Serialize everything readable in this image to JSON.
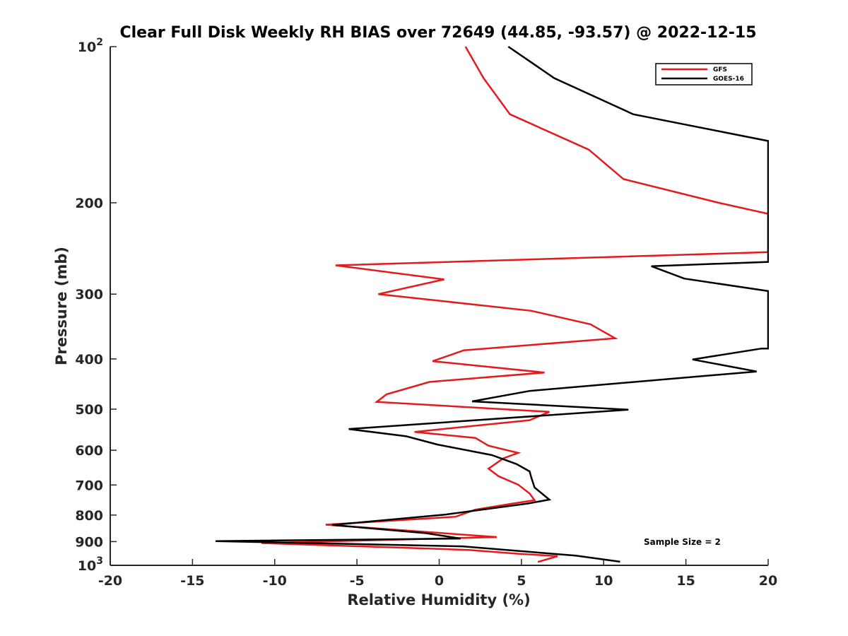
{
  "chart_data": {
    "type": "line",
    "title": "Clear Full Disk Weekly RH BIAS over 72649 (44.85, -93.57) @ 2022-12-15",
    "xlabel": "Relative Humidity (%)",
    "ylabel": "Pressure (mb)",
    "xlim": [
      -20,
      20
    ],
    "ylim": [
      100,
      1000
    ],
    "y_scale": "log",
    "y_reversed": true,
    "x_ticks": [
      "-20",
      "-15",
      "-10",
      "-5",
      "0",
      "5",
      "10",
      "15",
      "20"
    ],
    "y_ticks": [
      {
        "value": 100,
        "label": "10",
        "sup": "2"
      },
      {
        "value": 200,
        "label": "200"
      },
      {
        "value": 300,
        "label": "300"
      },
      {
        "value": 400,
        "label": "400"
      },
      {
        "value": 500,
        "label": "500"
      },
      {
        "value": 600,
        "label": "600"
      },
      {
        "value": 700,
        "label": "700"
      },
      {
        "value": 800,
        "label": "800"
      },
      {
        "value": 900,
        "label": "900"
      },
      {
        "value": 1000,
        "label": "10",
        "sup": "3"
      }
    ],
    "legend_position": "top-right",
    "annotation": "Sample Size = 2",
    "series": [
      {
        "name": "GFS",
        "color": "#e41a1c",
        "points": [
          [
            1.6,
            100
          ],
          [
            2.7,
            115
          ],
          [
            4.3,
            135
          ],
          [
            9.1,
            158
          ],
          [
            11.2,
            180
          ],
          [
            17.0,
            200
          ],
          [
            20,
            210
          ],
          [
            20,
            249
          ],
          [
            -6.3,
            264
          ],
          [
            0.3,
            281
          ],
          [
            -3.7,
            300
          ],
          [
            5.6,
            323
          ],
          [
            9.2,
            343
          ],
          [
            10.7,
            365
          ],
          [
            1.5,
            385
          ],
          [
            -0.4,
            404
          ],
          [
            6.4,
            425
          ],
          [
            -0.6,
            443
          ],
          [
            -3.2,
            468
          ],
          [
            -3.8,
            484
          ],
          [
            6.7,
            506
          ],
          [
            5.5,
            525
          ],
          [
            -1.5,
            553
          ],
          [
            2.2,
            568
          ],
          [
            3.0,
            588
          ],
          [
            4.8,
            607
          ],
          [
            3.9,
            622
          ],
          [
            3.0,
            651
          ],
          [
            3.6,
            673
          ],
          [
            4.8,
            699
          ],
          [
            5.5,
            727
          ],
          [
            5.8,
            749
          ],
          [
            4.5,
            760
          ],
          [
            2.2,
            781
          ],
          [
            1.0,
            806
          ],
          [
            -6.9,
            835
          ],
          [
            3.5,
            882
          ],
          [
            -10.8,
            906
          ],
          [
            1.8,
            934
          ],
          [
            4.8,
            950
          ],
          [
            7.2,
            960
          ],
          [
            6.0,
            985
          ]
        ]
      },
      {
        "name": "GOES-16",
        "color": "#000000",
        "points": [
          [
            4.2,
            100
          ],
          [
            7.0,
            115
          ],
          [
            11.8,
            135
          ],
          [
            20,
            152
          ],
          [
            20,
            260
          ],
          [
            12.9,
            265
          ],
          [
            14.9,
            280
          ],
          [
            20,
            296
          ],
          [
            20,
            382
          ],
          [
            19.6,
            382
          ],
          [
            15.4,
            401
          ],
          [
            19.3,
            423
          ],
          [
            5.5,
            461
          ],
          [
            2.0,
            483
          ],
          [
            11.5,
            501
          ],
          [
            -5.5,
            546
          ],
          [
            -2.0,
            564
          ],
          [
            -0.1,
            585
          ],
          [
            3.2,
            613
          ],
          [
            4.7,
            638
          ],
          [
            5.5,
            659
          ],
          [
            5.6,
            677
          ],
          [
            5.8,
            708
          ],
          [
            6.2,
            725
          ],
          [
            6.7,
            747
          ],
          [
            5.4,
            760
          ],
          [
            0.4,
            798
          ],
          [
            -6.5,
            836
          ],
          [
            -0.8,
            867
          ],
          [
            1.3,
            888
          ],
          [
            -13.6,
            898
          ],
          [
            1.4,
            919
          ],
          [
            8.3,
            958
          ],
          [
            11.0,
            984
          ]
        ]
      }
    ]
  }
}
